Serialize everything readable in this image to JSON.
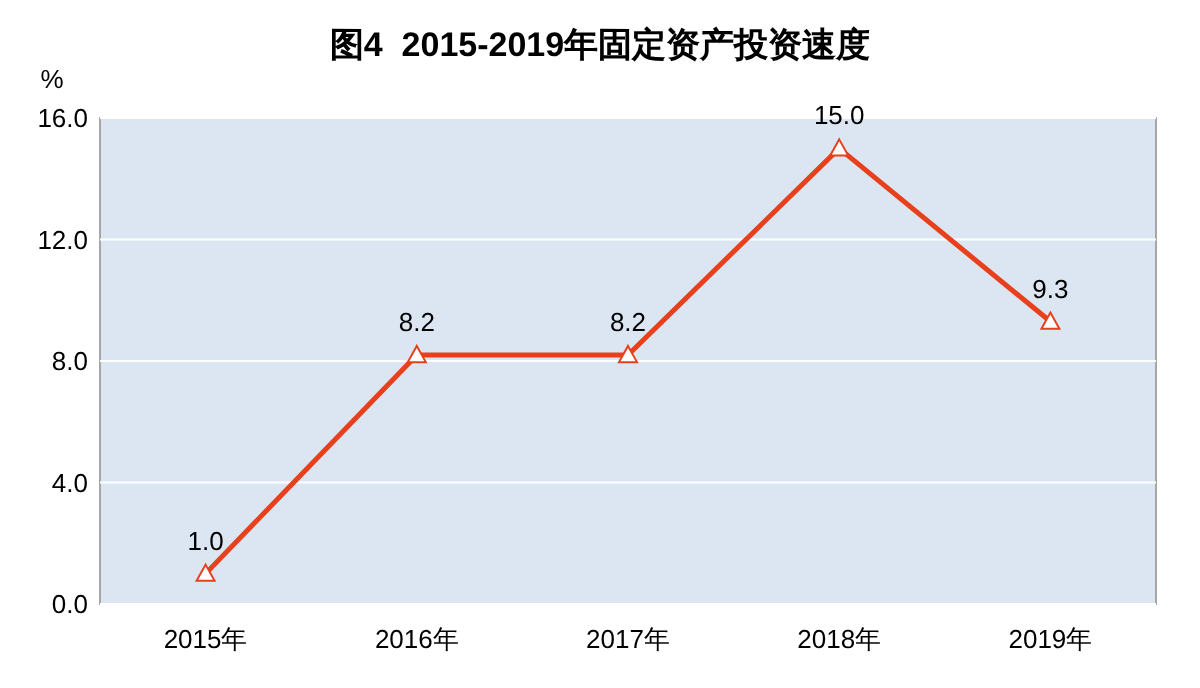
{
  "chart_data": {
    "type": "line",
    "title": "图4  2015-2019年固定资产投资速度",
    "ylabel": "%",
    "categories": [
      "2015年",
      "2016年",
      "2017年",
      "2018年",
      "2019年"
    ],
    "series": [
      {
        "color": "#e8401c",
        "values": [
          1.0,
          8.2,
          8.2,
          15.0,
          9.3
        ],
        "value_labels": [
          "1.0",
          "8.2",
          "8.2",
          "15.0",
          "9.3"
        ]
      }
    ],
    "ylim": [
      0,
      16
    ],
    "yticks": [
      {
        "value": 0,
        "label": "0.0"
      },
      {
        "value": 4,
        "label": "4.0"
      },
      {
        "value": 8,
        "label": "8.0"
      },
      {
        "value": 12,
        "label": "12.0"
      },
      {
        "value": 16,
        "label": "16.0"
      }
    ],
    "grid": "y",
    "marker": "triangle",
    "line_style": "solid"
  }
}
